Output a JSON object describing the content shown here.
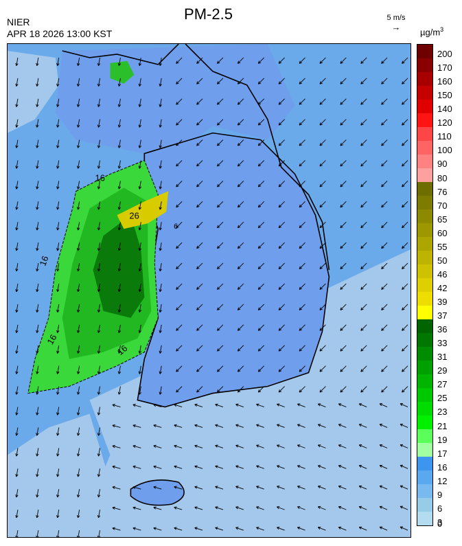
{
  "header": {
    "title": "PM-2.5",
    "agency": "NIER",
    "datetime": "APR 18 2026 13:00 KST",
    "wind_reference": "5 m/s",
    "unit": "µg/m",
    "unit_sup": "3"
  },
  "legend": {
    "labels": [
      "200",
      "170",
      "160",
      "150",
      "140",
      "120",
      "110",
      "100",
      "90",
      "80",
      "76",
      "70",
      "65",
      "60",
      "55",
      "50",
      "46",
      "42",
      "39",
      "37",
      "36",
      "33",
      "31",
      "29",
      "27",
      "25",
      "23",
      "21",
      "19",
      "17",
      "16",
      "12",
      "9",
      "6",
      "3",
      "0"
    ],
    "colors": [
      "#6e0000",
      "#8a0000",
      "#a80000",
      "#c40000",
      "#e00000",
      "#ff1414",
      "#ff4646",
      "#ff6464",
      "#ff8282",
      "#ffa0a0",
      "#6e6e00",
      "#7e7c00",
      "#8e8a00",
      "#9e9800",
      "#aea600",
      "#beb400",
      "#cec200",
      "#ded000",
      "#eede00",
      "#ffff00",
      "#006400",
      "#007800",
      "#008c00",
      "#00a000",
      "#00b400",
      "#00c800",
      "#00dc00",
      "#00f000",
      "#5aff5a",
      "#a0ffa0",
      "#3c96f0",
      "#5aa8f0",
      "#78baf0",
      "#96cce8",
      "#b4dcf0"
    ]
  },
  "map": {
    "sea_color": "#6aaaea",
    "land_color": "#6f9eec",
    "low_color": "#a3c8ec",
    "contour_labels": [
      "16",
      "16",
      "26",
      "16",
      "16",
      "6"
    ],
    "region": "Korean Peninsula and Yellow Sea",
    "icons": [
      "wind-arrow-icon"
    ]
  }
}
